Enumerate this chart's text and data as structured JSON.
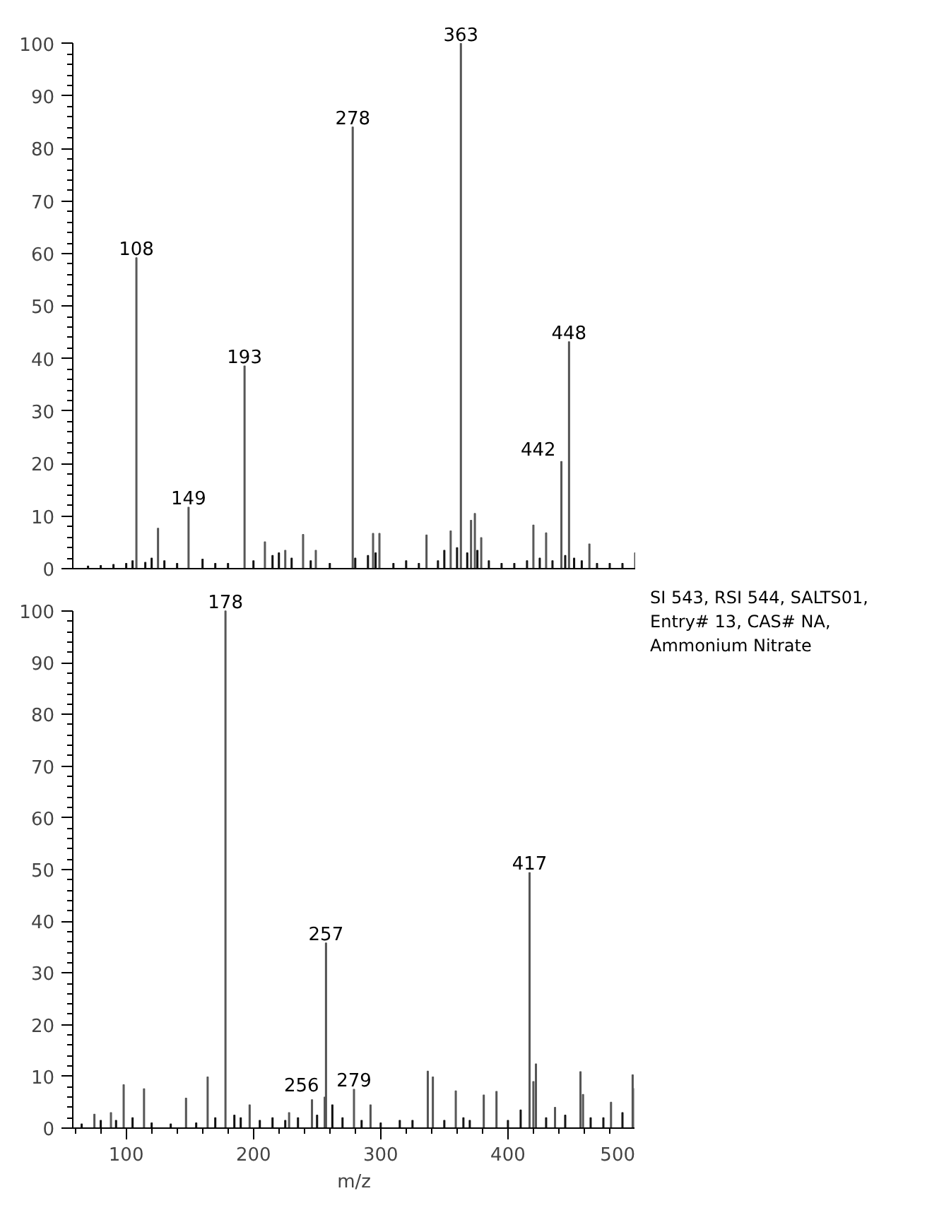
{
  "chart_data": [
    {
      "type": "bar",
      "xlim": [
        58,
        500
      ],
      "xticks": [
        100,
        200,
        300,
        400,
        500
      ],
      "ylim": [
        0,
        100
      ],
      "yticks": [
        0,
        10,
        20,
        30,
        40,
        50,
        60,
        70,
        80,
        90,
        100
      ],
      "tick_labels": "y",
      "series": [
        {
          "color": "#555555",
          "x": [
            108,
            125,
            149,
            193,
            209,
            225,
            239,
            249,
            278,
            294,
            299,
            336,
            355,
            363,
            371,
            374,
            379,
            420,
            430,
            442,
            448,
            464,
            500
          ],
          "values": [
            59.2,
            7.7,
            11.7,
            38.6,
            5.1,
            3.5,
            6.5,
            3.5,
            84.1,
            6.7,
            6.7,
            6.4,
            7.2,
            100,
            9.2,
            10.5,
            5.9,
            8.3,
            6.8,
            20.4,
            43.2,
            4.7,
            3
          ]
        },
        {
          "color": "#111111",
          "x": [
            70,
            80,
            90,
            100,
            105,
            115,
            120,
            130,
            140,
            160,
            170,
            180,
            200,
            215,
            220,
            230,
            245,
            260,
            280,
            290,
            296,
            310,
            320,
            330,
            345,
            350,
            360,
            368,
            376,
            385,
            395,
            405,
            415,
            425,
            435,
            445,
            452,
            458,
            470,
            480,
            490
          ],
          "values": [
            0.5,
            0.6,
            0.8,
            1,
            1.5,
            1.2,
            2,
            1.5,
            1,
            1.8,
            1,
            1,
            1.5,
            2.5,
            3,
            2,
            1.5,
            1,
            2,
            2.5,
            3,
            1,
            1.5,
            1,
            1.5,
            3.5,
            4,
            3,
            3.5,
            1.5,
            1,
            1,
            1.5,
            2,
            1.5,
            2.5,
            2,
            1.5,
            1,
            1,
            1
          ]
        }
      ],
      "annotations": [
        {
          "text": "108",
          "x": 108,
          "y": 59.2
        },
        {
          "text": "149",
          "x": 149,
          "y": 11.7
        },
        {
          "text": "193",
          "x": 193,
          "y": 38.6
        },
        {
          "text": "278",
          "x": 278,
          "y": 84.1
        },
        {
          "text": "363",
          "x": 363,
          "y": 100
        },
        {
          "text": "442",
          "x": 442,
          "y": 20.4
        },
        {
          "text": "448",
          "x": 448,
          "y": 43.2
        }
      ]
    },
    {
      "type": "bar",
      "xlim": [
        58,
        500
      ],
      "xticks": [
        100,
        200,
        300,
        400,
        500
      ],
      "ylim": [
        0,
        100
      ],
      "yticks": [
        0,
        10,
        20,
        30,
        40,
        50,
        60,
        70,
        80,
        90,
        100
      ],
      "xlabel": "m/z",
      "series": [
        {
          "color": "#555555",
          "x": [
            75,
            88,
            98,
            114,
            147,
            164,
            178,
            197,
            228,
            246,
            256,
            257,
            279,
            292,
            337,
            341,
            359,
            381,
            391,
            417,
            420,
            422,
            437,
            457,
            459,
            481,
            498,
            500
          ],
          "values": [
            2.7,
            3,
            8.4,
            7.6,
            5.8,
            9.9,
            100,
            4.5,
            3,
            5.5,
            6,
            35.8,
            7.5,
            4.5,
            11,
            9.9,
            7.2,
            6.4,
            7.1,
            49.4,
            9,
            12.4,
            4,
            10.9,
            6.5,
            5,
            10.3,
            7.7
          ]
        },
        {
          "color": "#111111",
          "x": [
            65,
            80,
            92,
            105,
            120,
            135,
            155,
            170,
            185,
            190,
            205,
            215,
            225,
            235,
            250,
            262,
            270,
            285,
            300,
            315,
            325,
            350,
            365,
            370,
            400,
            410,
            430,
            445,
            465,
            475,
            490
          ],
          "values": [
            0.8,
            1.5,
            1.5,
            2,
            1,
            0.8,
            1,
            2,
            2.5,
            2,
            1.5,
            2,
            1.5,
            2,
            2.5,
            4.5,
            2,
            1.5,
            1,
            1.5,
            1.5,
            1.5,
            2,
            1.5,
            1.5,
            3.5,
            2,
            2.5,
            2,
            2,
            3
          ]
        }
      ],
      "annotations": [
        {
          "text": "178",
          "x": 178,
          "y": 100
        },
        {
          "text": "256",
          "x": 256,
          "y": 6
        },
        {
          "text": "257",
          "x": 257,
          "y": 35.8
        },
        {
          "text": "279",
          "x": 279,
          "y": 7.5
        },
        {
          "text": "417",
          "x": 417,
          "y": 49.4
        },
        "SI 543, RSI 544, SALTS01,",
        "Entry# 13, CAS# NA,",
        "Ammonium Nitrate"
      ]
    }
  ]
}
